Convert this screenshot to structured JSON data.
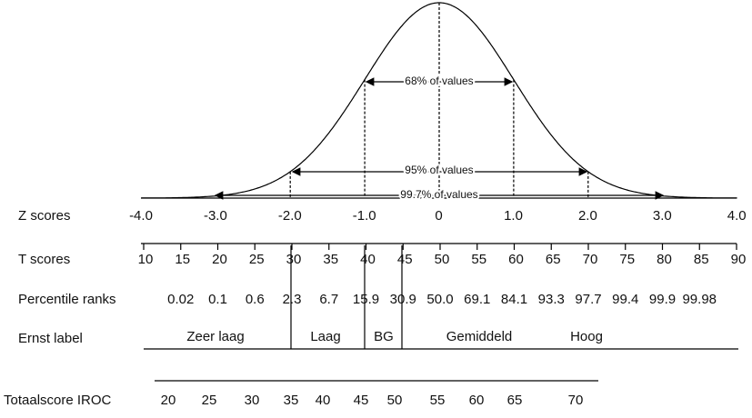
{
  "row_labels": {
    "z": "Z scores",
    "t": "T scores",
    "percentile": "Percentile ranks",
    "ernst": "Ernst label",
    "totaal": "Totaalscore IROC"
  },
  "annotations": {
    "range_68": "68% of values",
    "range_95": "95% of values",
    "range_997": "99.7% of values"
  },
  "z_scores": [
    "-4.0",
    "-3.0",
    "-2.0",
    "-1.0",
    "0",
    "1.0",
    "2.0",
    "3.0",
    "4.0"
  ],
  "t_scores": [
    "10",
    "15",
    "20",
    "25",
    "30",
    "35",
    "40",
    "45",
    "50",
    "55",
    "60",
    "65",
    "70",
    "75",
    "80",
    "85",
    "90"
  ],
  "percentile_ranks": [
    "0.02",
    "0.1",
    "0.6",
    "2.3",
    "6.7",
    "15.9",
    "30.9",
    "50.0",
    "69.1",
    "84.1",
    "93.3",
    "97.7",
    "99.4",
    "99.9",
    "99.98"
  ],
  "ernst_labels": [
    "Zeer laag",
    "Laag",
    "BG",
    "Gemiddeld",
    "Hoog"
  ],
  "totaalscore": [
    "20",
    "25",
    "30",
    "35",
    "40",
    "45",
    "50",
    "55",
    "60",
    "65",
    "70"
  ]
}
